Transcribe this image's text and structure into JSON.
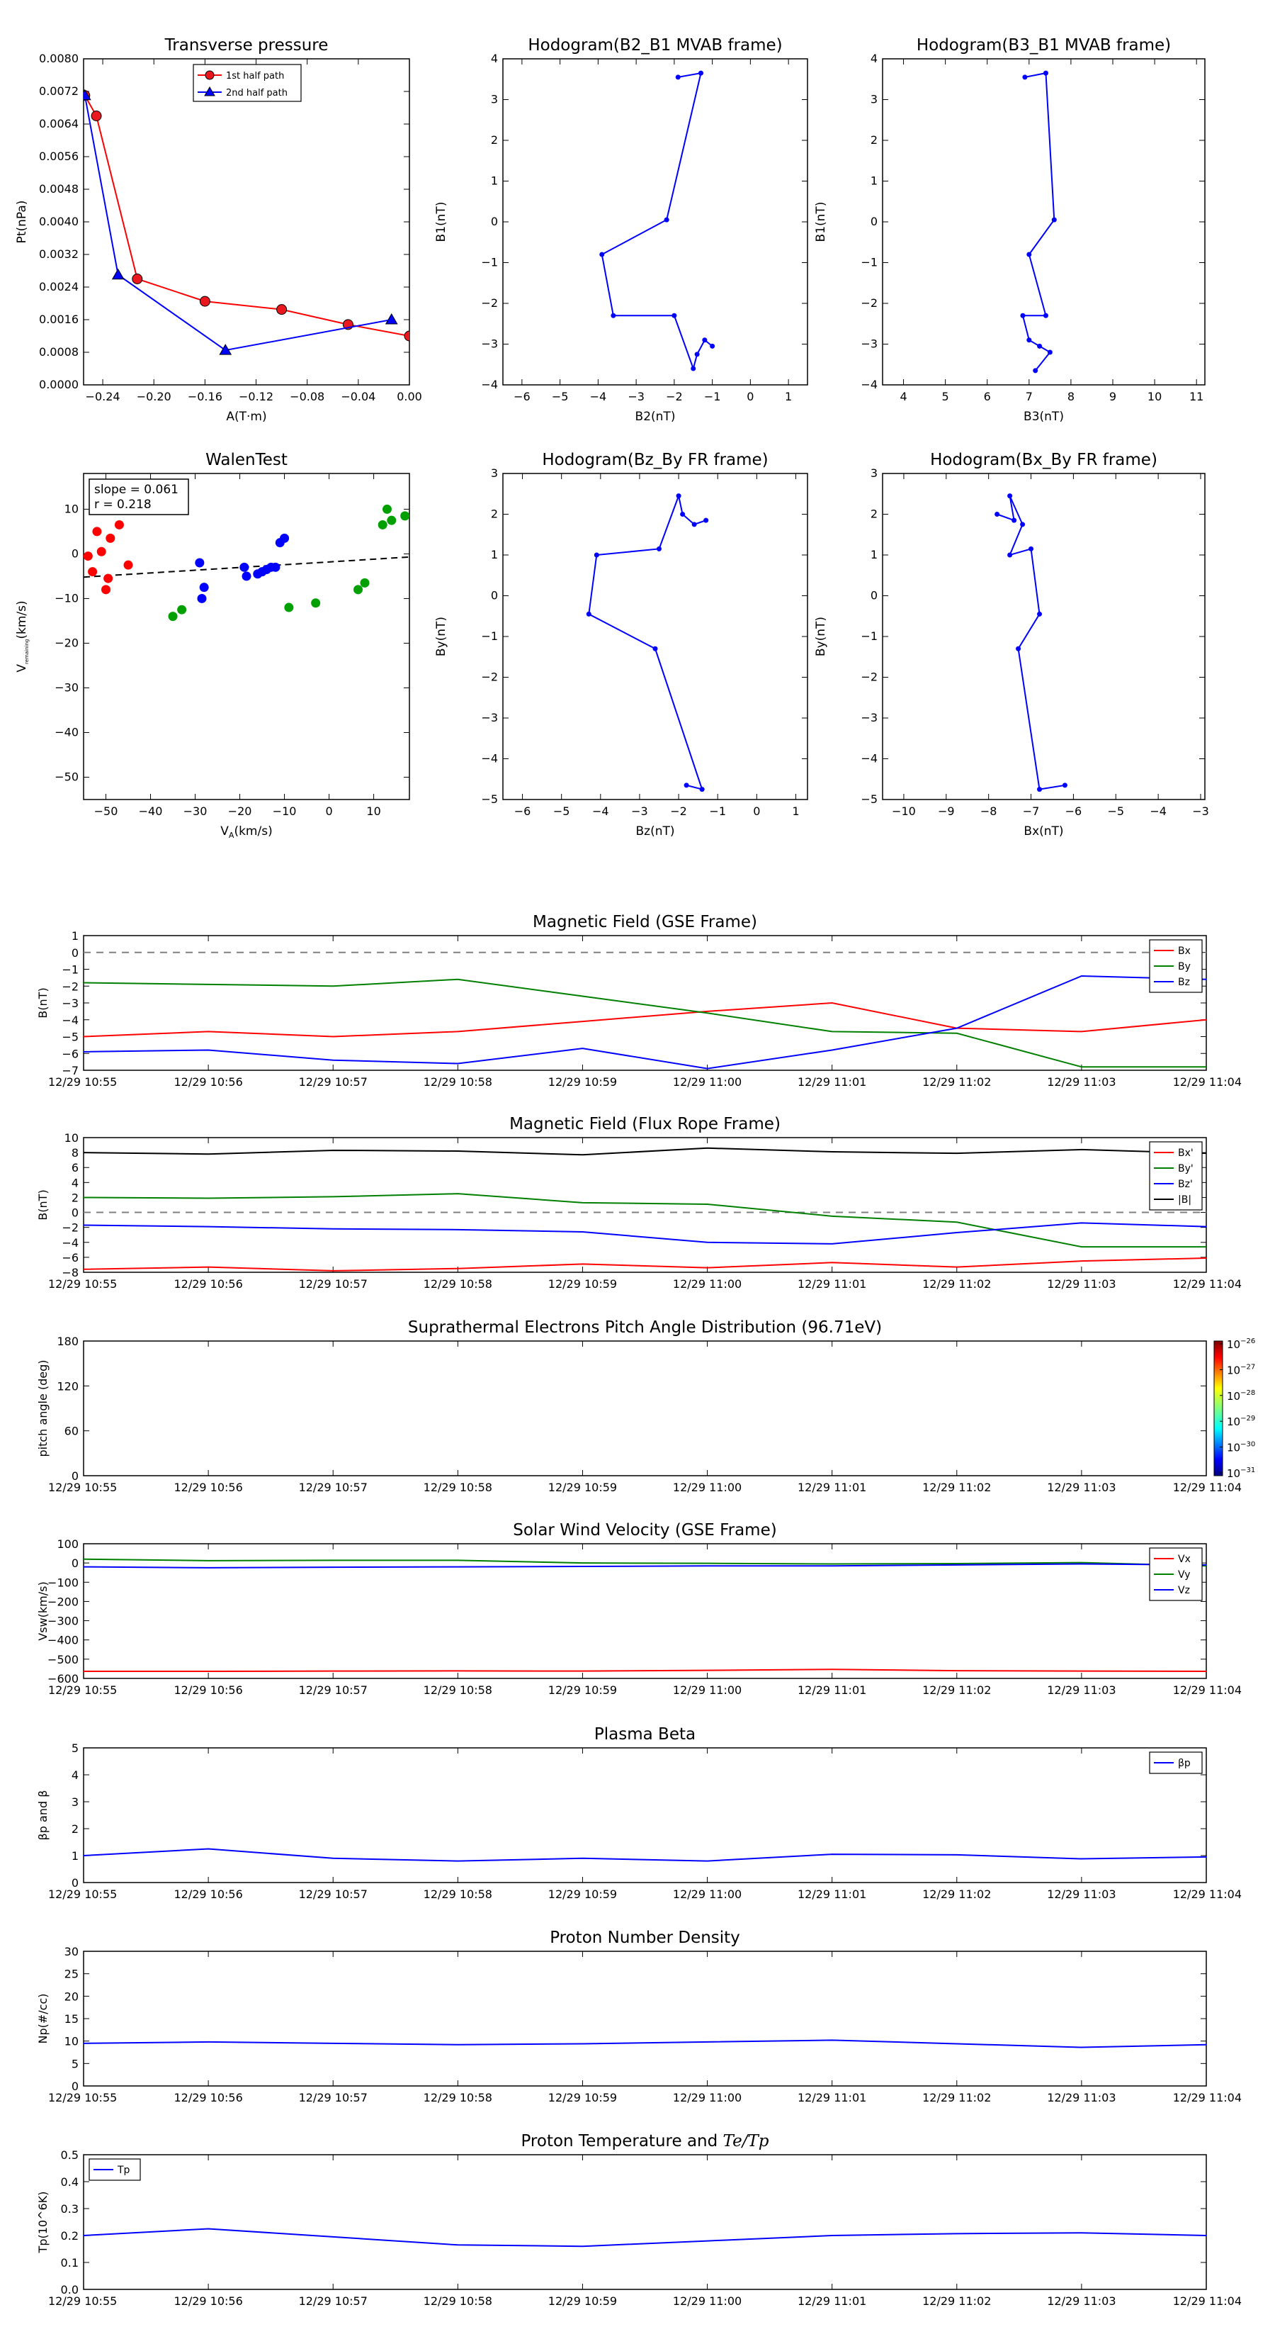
{
  "colors": {
    "red": "#ff0000",
    "green": "#008000",
    "blue": "#0000ff",
    "black": "#000000",
    "marker_red": "#e8181e",
    "marker_green": "#00a000",
    "dash": "#808080"
  },
  "chart_data": [
    {
      "id": "transverse-pressure",
      "type": "line",
      "title": "Transverse pressure",
      "xlabel": "A(T·m)",
      "ylabel": "Pt(nPa)",
      "xlim": [
        -0.255,
        0.0
      ],
      "ylim": [
        0.0,
        0.008
      ],
      "xticks": [
        -0.24,
        -0.2,
        -0.16,
        -0.12,
        -0.08,
        -0.04,
        0.0
      ],
      "xtick_labels": [
        "−0.24",
        "−0.20",
        "−0.16",
        "−0.12",
        "−0.08",
        "−0.04",
        "0.00"
      ],
      "yticks": [
        0,
        0.0008,
        0.0016,
        0.0024,
        0.0032,
        0.004,
        0.0048,
        0.0056,
        0.0064,
        0.0072,
        0.008
      ],
      "ytick_labels": [
        "0.0000",
        "0.0008",
        "0.0016",
        "0.0024",
        "0.0032",
        "0.0040",
        "0.0048",
        "0.0056",
        "0.0064",
        "0.0072",
        "0.0080"
      ],
      "legend": "top-center",
      "series": [
        {
          "name": "1st half path",
          "color": "#ff0000",
          "marker": "circle",
          "x": [
            -0.254,
            -0.245,
            -0.213,
            -0.16,
            -0.1,
            -0.048,
            0.0
          ],
          "y": [
            0.0071,
            0.0066,
            0.0026,
            0.00205,
            0.00185,
            0.00148,
            0.0012
          ]
        },
        {
          "name": "2nd half path",
          "color": "#0000ff",
          "marker": "triangle",
          "x": [
            -0.254,
            -0.228,
            -0.144,
            -0.014
          ],
          "y": [
            0.0071,
            0.0027,
            0.00085,
            0.0016
          ]
        }
      ]
    },
    {
      "id": "hodogram-b2-b1",
      "type": "line",
      "title": "Hodogram(B2_B1 MVAB frame)",
      "xlabel": "B2(nT)",
      "ylabel": "B1(nT)",
      "xlim": [
        -6.5,
        1.5
      ],
      "ylim": [
        -4,
        4
      ],
      "xticks": [
        -6,
        -5,
        -4,
        -3,
        -2,
        -1,
        0,
        1
      ],
      "xtick_labels": [
        "−6",
        "−5",
        "−4",
        "−3",
        "−2",
        "−1",
        "0",
        "1"
      ],
      "yticks": [
        -4,
        -3,
        -2,
        -1,
        0,
        1,
        2,
        3,
        4
      ],
      "ytick_labels": [
        "−4",
        "−3",
        "−2",
        "−1",
        "0",
        "1",
        "2",
        "3",
        "4"
      ],
      "series": [
        {
          "name": "",
          "color": "#0000ff",
          "marker": "dot",
          "x": [
            -1.9,
            -1.3,
            -2.2,
            -3.9,
            -3.6,
            -2.0,
            -1.5,
            -1.4,
            -1.2,
            -1.0
          ],
          "y": [
            3.55,
            3.65,
            0.05,
            -0.8,
            -2.3,
            -2.3,
            -3.6,
            -3.25,
            -2.9,
            -3.05
          ]
        }
      ]
    },
    {
      "id": "hodogram-b3-b1",
      "type": "line",
      "title": "Hodogram(B3_B1 MVAB frame)",
      "xlabel": "B3(nT)",
      "ylabel": "B1(nT)",
      "xlim": [
        3.5,
        11.2
      ],
      "ylim": [
        -4,
        4
      ],
      "xticks": [
        4,
        5,
        6,
        7,
        8,
        9,
        10,
        11
      ],
      "xtick_labels": [
        "4",
        "5",
        "6",
        "7",
        "8",
        "9",
        "10",
        "11"
      ],
      "yticks": [
        -4,
        -3,
        -2,
        -1,
        0,
        1,
        2,
        3,
        4
      ],
      "ytick_labels": [
        "−4",
        "−3",
        "−2",
        "−1",
        "0",
        "1",
        "2",
        "3",
        "4"
      ],
      "series": [
        {
          "name": "",
          "color": "#0000ff",
          "marker": "dot",
          "x": [
            6.9,
            7.4,
            7.6,
            7.0,
            7.4,
            6.85,
            7.0,
            7.25,
            7.5,
            7.15
          ],
          "y": [
            3.55,
            3.65,
            0.05,
            -0.8,
            -2.3,
            -2.3,
            -2.9,
            -3.05,
            -3.2,
            -3.65
          ]
        }
      ]
    },
    {
      "id": "walen-test",
      "type": "scatter",
      "title": "WalenTest",
      "xlabel": "VA(km/s)",
      "ylabel": "V_remaining(km/s)",
      "xlabel_main": "V",
      "xlabel_sub": "A",
      "xlabel_tail": "(km/s)",
      "ylabel_main": "V",
      "ylabel_sub": "remaining",
      "ylabel_tail": "(km/s)",
      "xlim": [
        -55,
        18
      ],
      "ylim": [
        -55,
        18
      ],
      "xticks": [
        -50,
        -40,
        -30,
        -20,
        -10,
        0,
        10
      ],
      "xtick_labels": [
        "−50",
        "−40",
        "−30",
        "−20",
        "−10",
        "0",
        "10"
      ],
      "yticks": [
        -50,
        -40,
        -30,
        -20,
        -10,
        0,
        10
      ],
      "ytick_labels": [
        "−50",
        "−40",
        "−30",
        "−20",
        "−10",
        "0",
        "10"
      ],
      "annotation": [
        "slope = 0.061",
        "r = 0.218"
      ],
      "fit_line": {
        "x": [
          -55,
          18
        ],
        "y": [
          -5.2,
          -0.7
        ]
      },
      "series": [
        {
          "name": "",
          "color": "#ff0000",
          "x": [
            -54,
            -53,
            -52,
            -51,
            -50,
            -49.5,
            -49,
            -47,
            -45
          ],
          "y": [
            -0.5,
            -4,
            5,
            0.5,
            -8,
            -5.5,
            3.5,
            6.5,
            -2.5
          ]
        },
        {
          "name": "",
          "color": "#0000ff",
          "x": [
            -29,
            -28.5,
            -28,
            -19,
            -18.5,
            -16,
            -15,
            -14,
            -13,
            -12,
            -11,
            -10
          ],
          "y": [
            -2,
            -10,
            -7.5,
            -3,
            -5,
            -4.5,
            -4,
            -3.5,
            -3,
            -3,
            2.5,
            3.5
          ]
        },
        {
          "name": "",
          "color": "#00a000",
          "x": [
            -35,
            -33,
            -9,
            -3,
            6.5,
            8,
            12,
            13,
            14,
            17
          ],
          "y": [
            -14,
            -12.5,
            -12,
            -11,
            -8,
            -6.5,
            6.5,
            10,
            7.5,
            8.5
          ]
        }
      ]
    },
    {
      "id": "hodogram-bz-by",
      "type": "line",
      "title": "Hodogram(Bz_By FR frame)",
      "xlabel": "Bz(nT)",
      "ylabel": "By(nT)",
      "xlim": [
        -6.5,
        1.3
      ],
      "ylim": [
        -5,
        3
      ],
      "xticks": [
        -6,
        -5,
        -4,
        -3,
        -2,
        -1,
        0,
        1
      ],
      "xtick_labels": [
        "−6",
        "−5",
        "−4",
        "−3",
        "−2",
        "−1",
        "0",
        "1"
      ],
      "yticks": [
        -5,
        -4,
        -3,
        -2,
        -1,
        0,
        1,
        2,
        3
      ],
      "ytick_labels": [
        "−5",
        "−4",
        "−3",
        "−2",
        "−1",
        "0",
        "1",
        "2",
        "3"
      ],
      "series": [
        {
          "name": "",
          "color": "#0000ff",
          "marker": "dot",
          "x": [
            -1.8,
            -1.4,
            -2.6,
            -4.3,
            -4.1,
            -2.5,
            -2.0,
            -1.9,
            -1.6,
            -1.3
          ],
          "y": [
            -4.65,
            -4.75,
            -1.3,
            -0.45,
            1.0,
            1.15,
            2.45,
            2.0,
            1.75,
            1.85
          ]
        }
      ]
    },
    {
      "id": "hodogram-bx-by",
      "type": "line",
      "title": "Hodogram(Bx_By FR frame)",
      "xlabel": "Bx(nT)",
      "ylabel": "By(nT)",
      "xlim": [
        -10.5,
        -2.9
      ],
      "ylim": [
        -5,
        3
      ],
      "xticks": [
        -10,
        -9,
        -8,
        -7,
        -6,
        -5,
        -4,
        -3
      ],
      "xtick_labels": [
        "−10",
        "−9",
        "−8",
        "−7",
        "−6",
        "−5",
        "−4",
        "−3"
      ],
      "yticks": [
        -5,
        -4,
        -3,
        -2,
        -1,
        0,
        1,
        2,
        3
      ],
      "ytick_labels": [
        "−5",
        "−4",
        "−3",
        "−2",
        "−1",
        "0",
        "1",
        "2",
        "3"
      ],
      "series": [
        {
          "name": "",
          "color": "#0000ff",
          "marker": "dot",
          "x": [
            -6.2,
            -6.8,
            -7.3,
            -6.8,
            -7.0,
            -7.5,
            -7.2,
            -7.5,
            -7.4,
            -7.8
          ],
          "y": [
            -4.65,
            -4.75,
            -1.3,
            -0.45,
            1.15,
            1.0,
            1.75,
            2.45,
            1.85,
            2.0
          ]
        }
      ]
    }
  ],
  "time_panels": [
    {
      "id": "mag-gse",
      "title": "Magnetic Field (GSE Frame)",
      "ylabel": "B(nT)",
      "ylim": [
        -7,
        1
      ],
      "yticks": [
        -7,
        -6,
        -5,
        -4,
        -3,
        -2,
        -1,
        0,
        1
      ],
      "ytick_labels": [
        "−7",
        "−6",
        "−5",
        "−4",
        "−3",
        "−2",
        "−1",
        "0",
        "1"
      ],
      "hline": 0,
      "legend": "top-right",
      "series": [
        {
          "name": "Bx",
          "color": "#ff0000",
          "values": [
            -5.0,
            -4.7,
            -5.0,
            -4.7,
            -4.1,
            -3.5,
            -3.0,
            -4.5,
            -4.7,
            -4.0
          ]
        },
        {
          "name": "By",
          "color": "#008000",
          "values": [
            -1.8,
            -1.9,
            -2.0,
            -1.6,
            -2.6,
            -3.6,
            -4.7,
            -4.8,
            -6.8,
            -6.8
          ]
        },
        {
          "name": "Bz",
          "color": "#0000ff",
          "values": [
            -5.9,
            -5.8,
            -6.4,
            -6.6,
            -5.7,
            -6.9,
            -5.8,
            -4.5,
            -1.4,
            -1.6
          ]
        }
      ]
    },
    {
      "id": "mag-fr",
      "title": "Magnetic Field (Flux Rope Frame)",
      "ylabel": "B(nT)",
      "ylim": [
        -8,
        10
      ],
      "yticks": [
        -8,
        -6,
        -4,
        -2,
        0,
        2,
        4,
        6,
        8,
        10
      ],
      "ytick_labels": [
        "−8",
        "−6",
        "−4",
        "−2",
        "0",
        "2",
        "4",
        "6",
        "8",
        "10"
      ],
      "hline": 0,
      "legend": "top-right",
      "series": [
        {
          "name": "Bx'",
          "color": "#ff0000",
          "values": [
            -7.6,
            -7.3,
            -7.8,
            -7.5,
            -6.9,
            -7.4,
            -6.7,
            -7.3,
            -6.5,
            -6.1
          ]
        },
        {
          "name": "By'",
          "color": "#008000",
          "values": [
            2.0,
            1.9,
            2.1,
            2.5,
            1.3,
            1.1,
            -0.5,
            -1.3,
            -4.6,
            -4.6
          ]
        },
        {
          "name": "Bz'",
          "color": "#0000ff",
          "values": [
            -1.7,
            -1.9,
            -2.2,
            -2.3,
            -2.6,
            -4.0,
            -4.2,
            -2.7,
            -1.4,
            -1.9
          ]
        },
        {
          "name": "|B|",
          "color": "#000000",
          "values": [
            8.0,
            7.8,
            8.3,
            8.2,
            7.7,
            8.6,
            8.1,
            7.9,
            8.4,
            7.9
          ]
        }
      ]
    },
    {
      "id": "pad",
      "title": "Suprathermal Electrons Pitch Angle Distribution (96.71eV)",
      "ylabel": "pitch angle (deg)",
      "ylim": [
        0,
        180
      ],
      "yticks": [
        0,
        60,
        120,
        180
      ],
      "ytick_labels": [
        "0",
        "60",
        "120",
        "180"
      ],
      "colorbar": {
        "labels_base": [
          "10",
          "10",
          "10",
          "10",
          "10",
          "10"
        ],
        "labels_exp": [
          "−26",
          "−27",
          "−28",
          "−29",
          "−30",
          "−31"
        ]
      },
      "series": []
    },
    {
      "id": "vsw",
      "title": "Solar Wind Velocity (GSE Frame)",
      "ylabel": "Vsw(km/s)",
      "ylim": [
        -600,
        100
      ],
      "yticks": [
        -600,
        -500,
        -400,
        -300,
        -200,
        -100,
        0,
        100
      ],
      "ytick_labels": [
        "−600",
        "−500",
        "−400",
        "−300",
        "−200",
        "−100",
        "0",
        "100"
      ],
      "legend": "top-right",
      "series": [
        {
          "name": "Vx",
          "color": "#ff0000",
          "values": [
            -563,
            -563,
            -562,
            -561,
            -562,
            -558,
            -553,
            -560,
            -562,
            -563
          ]
        },
        {
          "name": "Vy",
          "color": "#008000",
          "values": [
            20,
            12,
            14,
            14,
            0,
            -2,
            -5,
            -3,
            2,
            -15
          ]
        },
        {
          "name": "Vz",
          "color": "#0000ff",
          "values": [
            -20,
            -25,
            -22,
            -20,
            -18,
            -15,
            -15,
            -10,
            -5,
            -10
          ]
        }
      ]
    },
    {
      "id": "beta",
      "title": "Plasma Beta",
      "ylabel": "βp and β",
      "ylim": [
        0,
        5
      ],
      "yticks": [
        0,
        1,
        2,
        3,
        4,
        5
      ],
      "ytick_labels": [
        "0",
        "1",
        "2",
        "3",
        "4",
        "5"
      ],
      "legend": "top-right",
      "series": [
        {
          "name": "βp",
          "color": "#0000ff",
          "values": [
            1.0,
            1.25,
            0.9,
            0.8,
            0.9,
            0.8,
            1.05,
            1.03,
            0.88,
            0.95
          ]
        }
      ]
    },
    {
      "id": "np",
      "title": "Proton Number Density",
      "ylabel": "Np(#/cc)",
      "ylim": [
        0,
        30
      ],
      "yticks": [
        0,
        5,
        10,
        15,
        20,
        25,
        30
      ],
      "ytick_labels": [
        "0",
        "5",
        "10",
        "15",
        "20",
        "25",
        "30"
      ],
      "series": [
        {
          "name": "",
          "color": "#0000ff",
          "values": [
            9.5,
            9.8,
            9.5,
            9.2,
            9.4,
            9.8,
            10.2,
            9.4,
            8.6,
            9.2
          ]
        }
      ]
    },
    {
      "id": "tp",
      "title": "Proton Temperature and Te/Tp",
      "title_main": "Proton Temperature and ",
      "title_math": "Te/Tp",
      "ylabel": "Tp(10^6K)",
      "ylim": [
        0,
        0.5
      ],
      "yticks": [
        0,
        0.1,
        0.2,
        0.3,
        0.4,
        0.5
      ],
      "ytick_labels": [
        "0.0",
        "0.1",
        "0.2",
        "0.3",
        "0.4",
        "0.5"
      ],
      "legend": "top-left",
      "series": [
        {
          "name": "Tp",
          "color": "#0000ff",
          "values": [
            0.2,
            0.225,
            0.195,
            0.165,
            0.16,
            0.18,
            0.2,
            0.207,
            0.21,
            0.2
          ]
        }
      ]
    }
  ],
  "time_ticks": [
    "12/29 10:55",
    "12/29 10:56",
    "12/29 10:57",
    "12/29 10:58",
    "12/29 10:59",
    "12/29 11:00",
    "12/29 11:01",
    "12/29 11:02",
    "12/29 11:03",
    "12/29 11:04"
  ]
}
